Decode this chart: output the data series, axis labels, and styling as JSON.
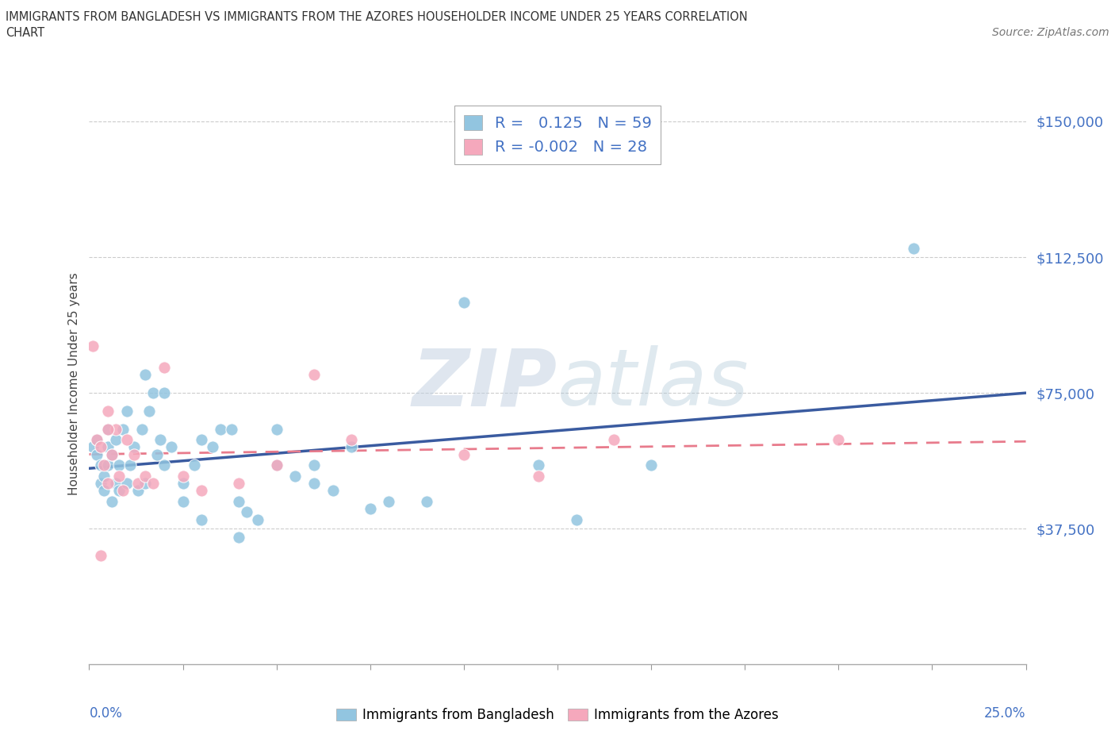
{
  "title_line1": "IMMIGRANTS FROM BANGLADESH VS IMMIGRANTS FROM THE AZORES HOUSEHOLDER INCOME UNDER 25 YEARS CORRELATION",
  "title_line2": "CHART",
  "source_text": "Source: ZipAtlas.com",
  "ylabel": "Householder Income Under 25 years",
  "yticks": [
    0,
    37500,
    75000,
    112500,
    150000
  ],
  "ytick_labels": [
    "",
    "$37,500",
    "$75,000",
    "$112,500",
    "$150,000"
  ],
  "xmin": 0.0,
  "xmax": 0.25,
  "ymin": 0,
  "ymax": 155000,
  "watermark_zip": "ZIP",
  "watermark_atlas": "atlas",
  "legend_r1": "R =   0.125   N = 59",
  "legend_r2": "R = -0.002   N = 28",
  "color_bangladesh": "#92C5E0",
  "color_azores": "#F5A8BC",
  "color_line_bangladesh": "#3A5BA0",
  "color_line_azores": "#E87B8C",
  "color_axis_text": "#4472C4",
  "legend_label1": "Immigrants from Bangladesh",
  "legend_label2": "Immigrants from the Azores",
  "bangladesh_x": [
    0.001,
    0.002,
    0.002,
    0.003,
    0.003,
    0.004,
    0.004,
    0.005,
    0.005,
    0.005,
    0.006,
    0.006,
    0.007,
    0.007,
    0.008,
    0.008,
    0.009,
    0.01,
    0.01,
    0.011,
    0.012,
    0.013,
    0.014,
    0.015,
    0.016,
    0.017,
    0.018,
    0.019,
    0.02,
    0.022,
    0.025,
    0.028,
    0.03,
    0.033,
    0.035,
    0.038,
    0.04,
    0.042,
    0.045,
    0.05,
    0.055,
    0.06,
    0.065,
    0.07,
    0.08,
    0.09,
    0.1,
    0.12,
    0.13,
    0.15,
    0.015,
    0.02,
    0.025,
    0.03,
    0.05,
    0.06,
    0.075,
    0.22,
    0.04
  ],
  "bangladesh_y": [
    60000,
    62000,
    58000,
    55000,
    50000,
    52000,
    48000,
    60000,
    65000,
    55000,
    45000,
    58000,
    50000,
    62000,
    55000,
    48000,
    65000,
    50000,
    70000,
    55000,
    60000,
    48000,
    65000,
    50000,
    70000,
    75000,
    58000,
    62000,
    55000,
    60000,
    50000,
    55000,
    62000,
    60000,
    65000,
    65000,
    45000,
    42000,
    40000,
    55000,
    52000,
    55000,
    48000,
    60000,
    45000,
    45000,
    100000,
    55000,
    40000,
    55000,
    80000,
    75000,
    45000,
    40000,
    65000,
    50000,
    43000,
    115000,
    35000
  ],
  "azores_x": [
    0.001,
    0.002,
    0.003,
    0.004,
    0.005,
    0.005,
    0.006,
    0.007,
    0.008,
    0.009,
    0.01,
    0.012,
    0.013,
    0.015,
    0.017,
    0.02,
    0.025,
    0.03,
    0.04,
    0.05,
    0.06,
    0.07,
    0.1,
    0.12,
    0.14,
    0.2,
    0.003,
    0.005
  ],
  "azores_y": [
    88000,
    62000,
    60000,
    55000,
    50000,
    70000,
    58000,
    65000,
    52000,
    48000,
    62000,
    58000,
    50000,
    52000,
    50000,
    82000,
    52000,
    48000,
    50000,
    55000,
    80000,
    62000,
    58000,
    52000,
    62000,
    62000,
    30000,
    65000
  ],
  "xtick_positions": [
    0.0,
    0.025,
    0.05,
    0.075,
    0.1,
    0.125,
    0.15,
    0.175,
    0.2,
    0.225,
    0.25
  ]
}
